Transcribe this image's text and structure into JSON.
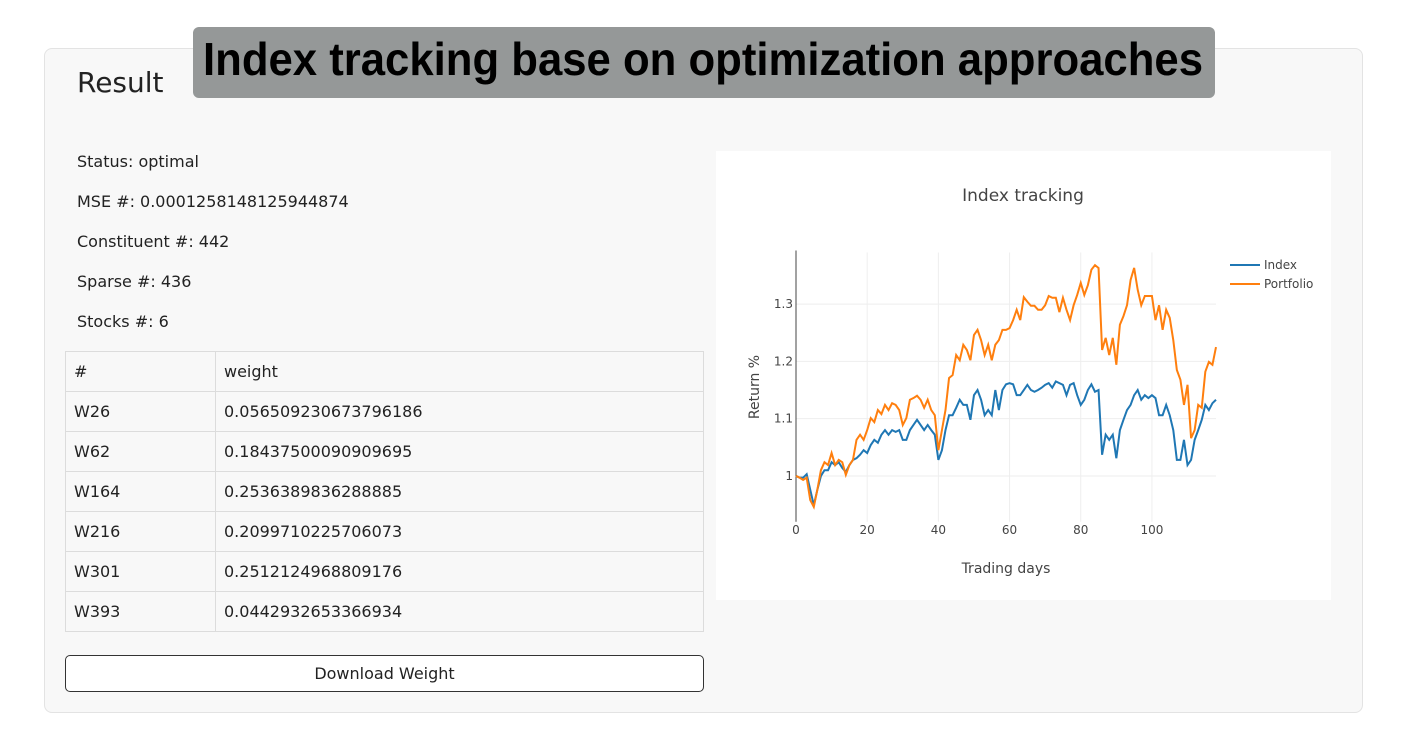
{
  "banner": "Index tracking base on optimization approaches",
  "card_title": "Result",
  "stats": [
    "Status: optimal",
    "MSE #: 0.0001258148125944874",
    "Constituent #: 442",
    "Sparse #: 436",
    "Stocks #: 6"
  ],
  "table": {
    "header": [
      "#",
      "weight"
    ],
    "rows": [
      [
        "W26",
        "0.056509230673796186"
      ],
      [
        "W62",
        "0.18437500090909695"
      ],
      [
        "W164",
        "0.2536389836288885"
      ],
      [
        "W216",
        "0.2099710225706073"
      ],
      [
        "W301",
        "0.2512124968809176"
      ],
      [
        "W393",
        "0.0442932653366934"
      ]
    ]
  },
  "button": "Download Weight",
  "chart_data": {
    "type": "line",
    "title": "Index tracking",
    "x_label": "Trading days",
    "y_label": "Return %",
    "x": [
      0,
      1,
      2,
      3,
      4,
      5,
      6,
      7,
      8,
      9,
      10,
      11,
      12,
      13,
      14,
      15,
      16,
      17,
      18,
      19,
      20,
      21,
      22,
      23,
      24,
      25,
      26,
      27,
      28,
      29,
      30,
      31,
      32,
      33,
      34,
      35,
      36,
      37,
      38,
      39,
      40,
      41,
      42,
      43,
      44,
      45,
      46,
      47,
      48,
      49,
      50,
      51,
      52,
      53,
      54,
      55,
      56,
      57,
      58,
      59,
      60,
      61,
      62,
      63,
      64,
      65,
      66,
      67,
      68,
      69,
      70,
      71,
      72,
      73,
      74,
      75,
      76,
      77,
      78,
      79,
      80,
      81,
      82,
      83,
      84,
      85,
      86,
      87,
      88,
      89,
      90,
      91,
      92,
      93,
      94,
      95,
      96,
      97,
      98,
      99,
      100,
      101,
      102,
      103,
      104,
      105,
      106,
      107,
      108,
      109,
      110,
      111,
      112,
      113,
      114,
      115,
      116,
      117,
      118
    ],
    "series": [
      {
        "name": "Index",
        "color": "#1f77b4",
        "values": [
          1.0,
          0.997,
          0.997,
          1.003,
          0.976,
          0.949,
          0.976,
          1.0,
          1.01,
          1.01,
          1.024,
          1.019,
          1.024,
          1.014,
          1.007,
          1.019,
          1.028,
          1.031,
          1.037,
          1.045,
          1.04,
          1.054,
          1.063,
          1.058,
          1.072,
          1.08,
          1.072,
          1.08,
          1.077,
          1.08,
          1.063,
          1.063,
          1.08,
          1.089,
          1.098,
          1.089,
          1.08,
          1.089,
          1.08,
          1.072,
          1.028,
          1.045,
          1.08,
          1.106,
          1.106,
          1.119,
          1.133,
          1.124,
          1.124,
          1.098,
          1.141,
          1.15,
          1.133,
          1.106,
          1.115,
          1.106,
          1.15,
          1.115,
          1.15,
          1.16,
          1.162,
          1.16,
          1.141,
          1.141,
          1.15,
          1.159,
          1.15,
          1.147,
          1.15,
          1.154,
          1.159,
          1.162,
          1.154,
          1.165,
          1.162,
          1.159,
          1.141,
          1.159,
          1.162,
          1.141,
          1.124,
          1.133,
          1.15,
          1.16,
          1.147,
          1.15,
          1.037,
          1.072,
          1.063,
          1.072,
          1.031,
          1.08,
          1.098,
          1.115,
          1.124,
          1.141,
          1.15,
          1.133,
          1.141,
          1.136,
          1.141,
          1.136,
          1.106,
          1.106,
          1.124,
          1.106,
          1.08,
          1.028,
          1.028,
          1.063,
          1.019,
          1.028,
          1.063,
          1.08,
          1.098,
          1.124,
          1.115,
          1.127,
          1.133
        ]
      },
      {
        "name": "Portfolio",
        "color": "#ff7f0e",
        "values": [
          1.0,
          0.997,
          0.993,
          0.997,
          0.958,
          0.946,
          0.976,
          1.01,
          1.024,
          1.019,
          1.04,
          1.019,
          1.028,
          1.024,
          1.002,
          1.019,
          1.028,
          1.063,
          1.072,
          1.063,
          1.08,
          1.101,
          1.094,
          1.115,
          1.108,
          1.124,
          1.115,
          1.127,
          1.124,
          1.115,
          1.089,
          1.101,
          1.133,
          1.136,
          1.14,
          1.133,
          1.119,
          1.133,
          1.115,
          1.106,
          1.045,
          1.08,
          1.115,
          1.171,
          1.176,
          1.211,
          1.202,
          1.229,
          1.22,
          1.202,
          1.246,
          1.255,
          1.237,
          1.211,
          1.229,
          1.202,
          1.229,
          1.237,
          1.255,
          1.255,
          1.258,
          1.272,
          1.29,
          1.272,
          1.312,
          1.304,
          1.297,
          1.297,
          1.29,
          1.29,
          1.298,
          1.314,
          1.311,
          1.311,
          1.286,
          1.311,
          1.29,
          1.272,
          1.298,
          1.316,
          1.337,
          1.316,
          1.333,
          1.36,
          1.368,
          1.363,
          1.22,
          1.241,
          1.211,
          1.241,
          1.194,
          1.264,
          1.279,
          1.298,
          1.342,
          1.363,
          1.325,
          1.298,
          1.314,
          1.314,
          1.314,
          1.272,
          1.298,
          1.255,
          1.29,
          1.276,
          1.237,
          1.185,
          1.168,
          1.124,
          1.159,
          1.066,
          1.08,
          1.124,
          1.119,
          1.182,
          1.199,
          1.194,
          1.225
        ]
      }
    ],
    "xlim": [
      0,
      118
    ],
    "xticks": [
      0,
      20,
      40,
      60,
      80,
      100
    ],
    "ylim": [
      0.92,
      1.39
    ],
    "yticks": [
      1,
      1.1,
      1.2,
      1.3
    ],
    "grid": true,
    "legend": "top-right"
  }
}
